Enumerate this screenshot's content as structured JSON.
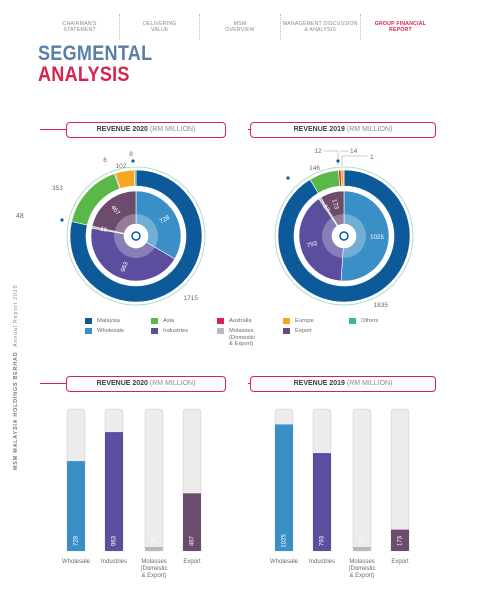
{
  "nav": [
    {
      "label1": "CHAIRMAN'S",
      "label2": "STATEMENT",
      "active": false
    },
    {
      "label1": "DELIVERING",
      "label2": "VALUE",
      "active": false
    },
    {
      "label1": "MSM",
      "label2": "OVERVIEW",
      "active": false
    },
    {
      "label1": "MANAGEMENT DISCUSSION",
      "label2": "& ANALYSIS",
      "active": false
    },
    {
      "label1": "GROUP FINANCIAL",
      "label2": "REPORT",
      "active": true
    }
  ],
  "title": {
    "line1": "SEGMENTAL",
    "line2": "ANALYSIS"
  },
  "page_number": "48",
  "side": {
    "company": "MSM MALAYSIA HOLDINGS BERHAD",
    "report": "Annual Report 2020"
  },
  "colors": {
    "malaysia": "#0d5a9a",
    "asia": "#5ab848",
    "australia": "#d8244d",
    "europe": "#f5a623",
    "others": "#39b5a4",
    "wholesale": "#3a8fc7",
    "industries": "#5b4e9e",
    "molasses": "#b9b9b9",
    "export": "#6d4b6c",
    "accent": "#d8244d"
  },
  "headers": {
    "rev2020_bold": "REVENUE 2020",
    "rev2019_bold": "REVENUE 2019",
    "unit": "(RM MILLION)"
  },
  "legend": [
    {
      "label": "Malaysia",
      "color_key": "malaysia"
    },
    {
      "label": "Asia",
      "color_key": "asia"
    },
    {
      "label": "Australia",
      "color_key": "australia"
    },
    {
      "label": "Europe",
      "color_key": "europe"
    },
    {
      "label": "Others",
      "color_key": "others"
    },
    {
      "label": "Wholesale",
      "color_key": "wholesale"
    },
    {
      "label": "Industries",
      "color_key": "industries"
    },
    {
      "label": "Molasses\n(Domestic\n& Export)",
      "color_key": "molasses"
    },
    {
      "label": "Export",
      "color_key": "export"
    }
  ],
  "chart_data": [
    {
      "type": "pie",
      "title": "REVENUE 2020 (RM MILLION)",
      "ring": "outer",
      "categories": [
        "Malaysia",
        "Asia",
        "Australia",
        "Europe",
        "Others"
      ],
      "values": [
        1715,
        353,
        6,
        102,
        8
      ]
    },
    {
      "type": "pie",
      "title": "REVENUE 2020 (RM MILLION)",
      "ring": "inner",
      "categories": [
        "Wholesale",
        "Industries",
        "Molasses (Domestic & Export)",
        "Export"
      ],
      "values": [
        728,
        963,
        16,
        467
      ]
    },
    {
      "type": "pie",
      "title": "REVENUE 2019 (RM MILLION)",
      "ring": "outer",
      "categories": [
        "Malaysia",
        "Asia",
        "Australia",
        "Europe",
        "Others"
      ],
      "values": [
        1835,
        146,
        12,
        14,
        1
      ]
    },
    {
      "type": "pie",
      "title": "REVENUE 2019 (RM MILLION)",
      "ring": "inner",
      "categories": [
        "Wholesale",
        "Industries",
        "Molasses (Domestic & Export)",
        "Export"
      ],
      "values": [
        1025,
        793,
        17,
        173
      ]
    },
    {
      "type": "bar",
      "title": "REVENUE 2020 (RM MILLION)",
      "categories": [
        "Wholesale",
        "Industries",
        "Molasses\n(Domestic\n& Export)",
        "Export"
      ],
      "values": [
        728,
        963,
        16,
        467
      ],
      "ylim": [
        0,
        1150
      ]
    },
    {
      "type": "bar",
      "title": "REVENUE 2019 (RM MILLION)",
      "categories": [
        "Wholesale",
        "Industries",
        "Molasses\n(Domestic\n& Export)",
        "Export"
      ],
      "values": [
        1025,
        793,
        17,
        173
      ],
      "ylim": [
        0,
        1150
      ]
    }
  ]
}
